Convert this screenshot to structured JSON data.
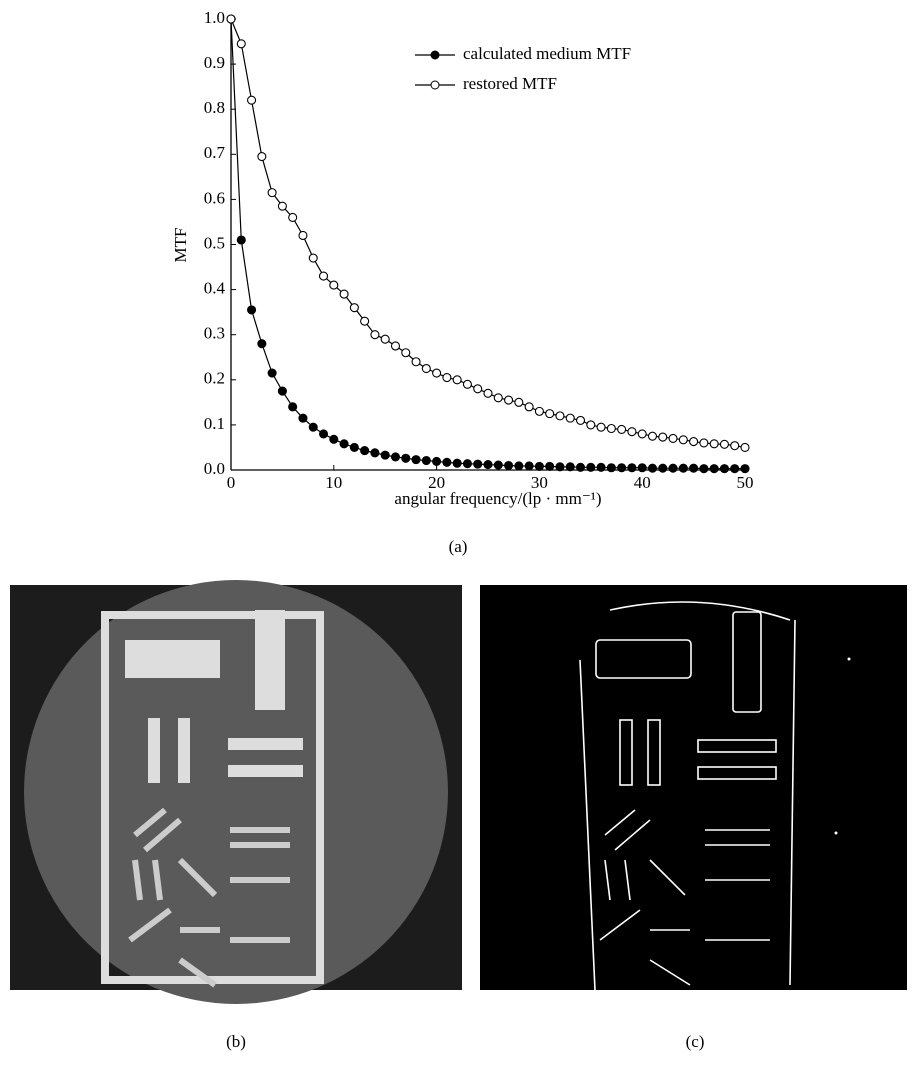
{
  "chart_data": {
    "type": "line",
    "xlabel": "angular frequency/(lp · mm⁻¹)",
    "ylabel": "MTF",
    "x": [
      0,
      1,
      2,
      3,
      4,
      5,
      6,
      7,
      8,
      9,
      10,
      11,
      12,
      13,
      14,
      15,
      16,
      17,
      18,
      19,
      20,
      21,
      22,
      23,
      24,
      25,
      26,
      27,
      28,
      29,
      30,
      31,
      32,
      33,
      34,
      35,
      36,
      37,
      38,
      39,
      40,
      41,
      42,
      43,
      44,
      45,
      46,
      47,
      48,
      49,
      50
    ],
    "series": [
      {
        "name": "calculated medium MTF",
        "color": "#000000",
        "marker": "filled",
        "values": [
          1.0,
          0.51,
          0.355,
          0.28,
          0.215,
          0.175,
          0.14,
          0.115,
          0.095,
          0.08,
          0.068,
          0.058,
          0.05,
          0.043,
          0.038,
          0.033,
          0.029,
          0.026,
          0.023,
          0.021,
          0.019,
          0.017,
          0.015,
          0.014,
          0.013,
          0.012,
          0.011,
          0.01,
          0.009,
          0.009,
          0.008,
          0.008,
          0.007,
          0.007,
          0.006,
          0.006,
          0.006,
          0.005,
          0.005,
          0.005,
          0.005,
          0.004,
          0.004,
          0.004,
          0.004,
          0.004,
          0.003,
          0.003,
          0.003,
          0.003,
          0.003
        ]
      },
      {
        "name": "restored MTF",
        "color": "#000000",
        "marker": "open",
        "values": [
          1.0,
          0.945,
          0.82,
          0.695,
          0.615,
          0.585,
          0.56,
          0.52,
          0.47,
          0.43,
          0.41,
          0.39,
          0.36,
          0.33,
          0.3,
          0.29,
          0.275,
          0.26,
          0.24,
          0.225,
          0.215,
          0.205,
          0.2,
          0.19,
          0.18,
          0.17,
          0.16,
          0.155,
          0.15,
          0.14,
          0.13,
          0.125,
          0.12,
          0.115,
          0.11,
          0.1,
          0.095,
          0.092,
          0.09,
          0.085,
          0.08,
          0.075,
          0.073,
          0.07,
          0.067,
          0.063,
          0.06,
          0.058,
          0.057,
          0.054,
          0.05
        ]
      }
    ],
    "xlim": [
      0,
      50
    ],
    "xticks": [
      0,
      10,
      20,
      30,
      40,
      50
    ],
    "ylim": [
      0,
      1
    ],
    "yticks": [
      {
        "value": 0,
        "label": "0.0"
      },
      0.1,
      0.2,
      0.3,
      0.4,
      0.5,
      0.6,
      0.7,
      0.8,
      0.9,
      {
        "value": 1,
        "label": "1.0"
      }
    ],
    "grid": false,
    "legend": "upper-right"
  },
  "captions": [
    "(a)",
    "(b)",
    "(c)"
  ]
}
